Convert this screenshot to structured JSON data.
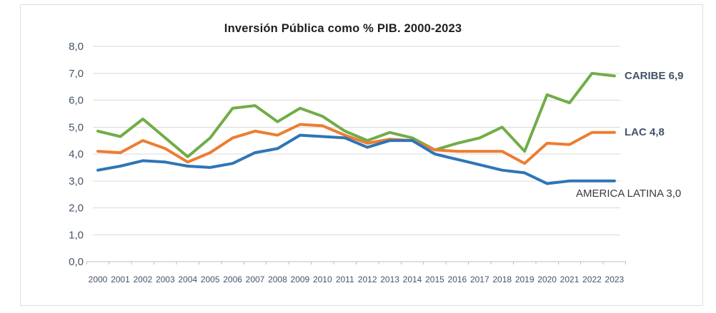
{
  "chart_data": {
    "type": "line",
    "title": "Inversión Pública como % PIB. 2000-2023",
    "x": [
      "2000",
      "2001",
      "2002",
      "2003",
      "2004",
      "2005",
      "2006",
      "2007",
      "2008",
      "2009",
      "2010",
      "2011",
      "2012",
      "2013",
      "2014",
      "2015",
      "2016",
      "2017",
      "2018",
      "2019",
      "2020",
      "2021",
      "2022",
      "2023"
    ],
    "ylim": [
      0,
      8
    ],
    "ytick_step": 1,
    "ytick_labels": [
      "0,0",
      "1,0",
      "2,0",
      "3,0",
      "4,0",
      "5,0",
      "6,0",
      "7,0",
      "8,0"
    ],
    "grid": "horizontal",
    "legend_position": "series end labels at right of plot",
    "series": [
      {
        "name": "CARIBE",
        "end_label": "CARIBE 6,9",
        "end_value": "6,9",
        "color": "#70AD47",
        "values": [
          4.85,
          4.65,
          5.3,
          4.6,
          3.9,
          4.6,
          5.7,
          5.8,
          5.2,
          5.7,
          5.4,
          4.85,
          4.5,
          4.8,
          4.6,
          4.15,
          4.4,
          4.6,
          5.0,
          4.1,
          6.2,
          5.9,
          7.0,
          6.9
        ]
      },
      {
        "name": "LAC",
        "end_label": "LAC 4,8",
        "end_value": "4,8",
        "color": "#ED7D31",
        "values": [
          4.1,
          4.05,
          4.5,
          4.2,
          3.7,
          4.05,
          4.6,
          4.85,
          4.7,
          5.1,
          5.05,
          4.7,
          4.4,
          4.55,
          4.5,
          4.15,
          4.1,
          4.1,
          4.1,
          3.65,
          4.4,
          4.35,
          4.8,
          4.8
        ]
      },
      {
        "name": "AMERICA LATINA",
        "end_label": "AMERICA LATINA 3,0",
        "end_value": "3,0",
        "color": "#2E75B6",
        "values": [
          3.4,
          3.55,
          3.75,
          3.7,
          3.55,
          3.5,
          3.65,
          4.05,
          4.2,
          4.7,
          4.65,
          4.6,
          4.25,
          4.5,
          4.5,
          4.0,
          3.8,
          3.6,
          3.4,
          3.3,
          2.9,
          3.0,
          3.0,
          3.0
        ]
      }
    ],
    "colors": {
      "gridline": "#D9D9D9",
      "axis_line": "#BFBFBF",
      "axis_text": "#44546A",
      "title_text": "#1F1F1F",
      "end_label_bold": "#44546A",
      "end_label_plain": "#3B3B3B"
    }
  }
}
